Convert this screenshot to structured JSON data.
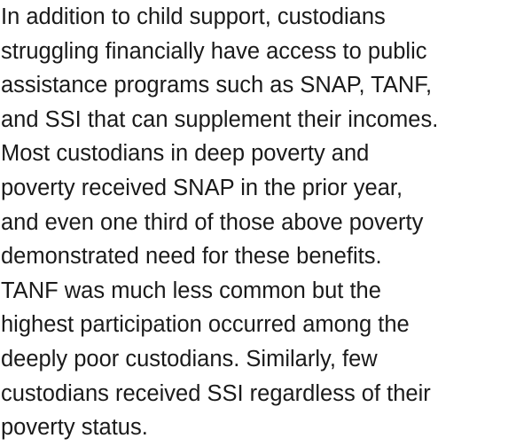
{
  "paragraph": {
    "lines": [
      "In addition to child support, custodians",
      "struggling financially have access to public",
      "assistance programs such as SNAP, TANF,",
      "and SSI that can supplement their incomes.",
      "Most custodians in deep poverty and",
      "poverty received SNAP in the prior year,",
      "and even one third of those above poverty",
      "demonstrated need for these benefits.",
      "TANF was much less common but the",
      "highest participation occurred among the",
      "deeply poor custodians. Similarly, few",
      "custodians received SSI regardless of their",
      "poverty status."
    ]
  }
}
